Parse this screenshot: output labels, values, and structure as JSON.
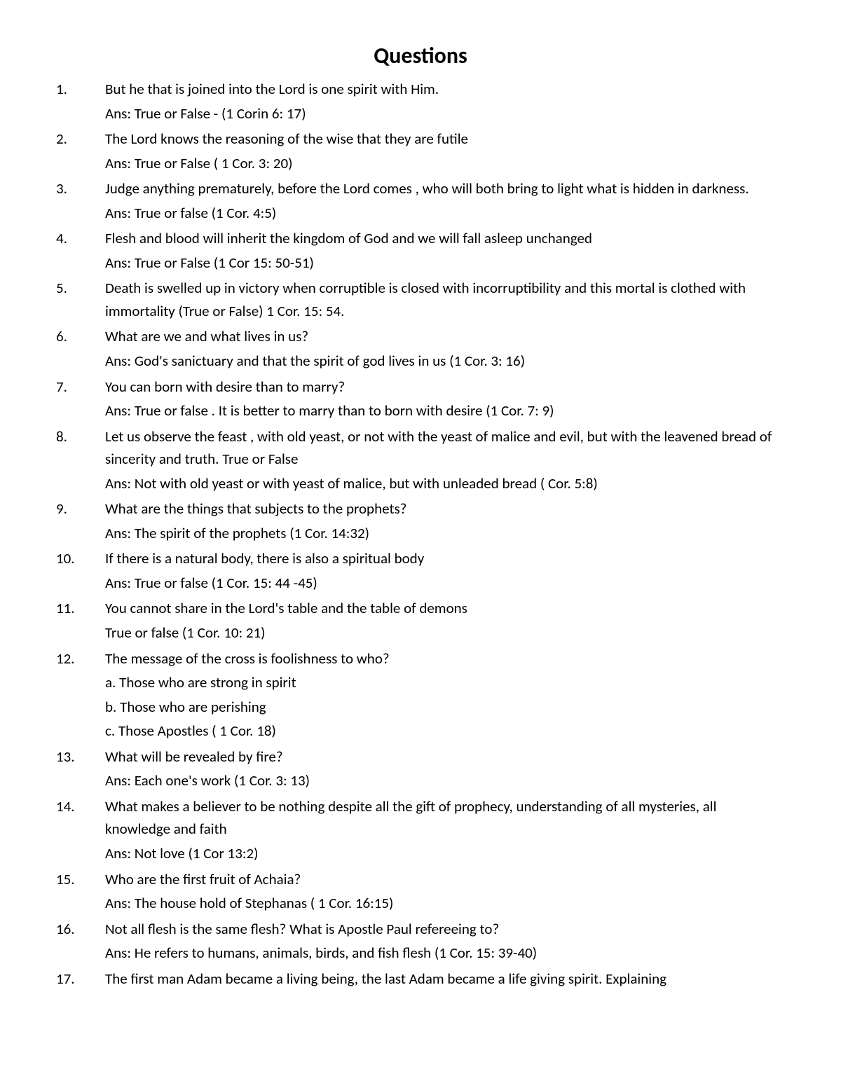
{
  "title": "Questions",
  "text_color": "#000000",
  "background_color": "#ffffff",
  "title_fontsize": 32,
  "body_fontsize": 21,
  "questions": [
    {
      "num": "1.",
      "lines": [
        "But he that is  joined into the Lord is one spirit with Him.",
        "Ans: True or False  - (1 Corin 6: 17)"
      ]
    },
    {
      "num": "2.",
      "lines": [
        "The Lord knows the reasoning of the wise that they are futile",
        "Ans: True or False ( 1 Cor. 3: 20)"
      ]
    },
    {
      "num": "3.",
      "lines": [
        "Judge anything prematurely, before the Lord comes , who will both bring to light what is hidden in darkness.",
        "Ans: True or false   (1 Cor. 4:5)"
      ]
    },
    {
      "num": "4.",
      "lines": [
        "Flesh and blood will inherit the kingdom  of God and we will fall asleep unchanged",
        "Ans: True or False  (1 Cor 15: 50-51)"
      ]
    },
    {
      "num": "5.",
      "lines": [
        "Death is swelled  up in victory when corruptible is closed with incorruptibility and this mortal is clothed with immortality  (True or False) 1 Cor. 15: 54."
      ]
    },
    {
      "num": "6.",
      "lines": [
        "What are we and  what  lives in us?",
        "Ans:  God's sanictuary and that the spirit of god lives in us (1 Cor. 3: 16)"
      ]
    },
    {
      "num": "7.",
      "lines": [
        "You can born with desire than to marry?",
        "Ans:  True or false  . It is better  to  marry than to born with desire (1 Cor. 7: 9)"
      ]
    },
    {
      "num": "8.",
      "lines": [
        "Let  us observe the feast , with old yeast, or not with the yeast of malice and evil, but with the leavened bread of sincerity  and truth. True or False",
        "Ans: Not with old yeast or with yeast of malice, but with unleaded bread ( Cor. 5:8)"
      ]
    },
    {
      "num": "9.",
      "lines": [
        "What are the things  that subjects to the prophets?",
        "Ans: The spirit  of the prophets (1 Cor. 14:32)"
      ]
    },
    {
      "num": "10.",
      "lines": [
        "If there is  a natural body, there is also a spiritual body",
        "Ans: True or false  (1 Cor. 15: 44 -45)"
      ]
    },
    {
      "num": "11.",
      "lines": [
        "You cannot share in the Lord's table  and the table of  demons",
        "True  or false  (1 Cor. 10: 21)"
      ]
    },
    {
      "num": "12.",
      "lines": [
        "The message  of the cross is foolishness  to who?",
        "a. Those who are strong in spirit",
        "b. Those who are perishing",
        "c.  Those  Apostles   ( 1 Cor. 18)"
      ]
    },
    {
      "num": "13.",
      "lines": [
        "What will be  revealed by fire?",
        "Ans: Each one's work (1 Cor. 3: 13)"
      ]
    },
    {
      "num": "14.",
      "lines": [
        "What makes a believer to be nothing despite all the gift of prophecy, understanding of all mysteries, all knowledge and faith",
        "Ans: Not   love (1 Cor 13:2)"
      ]
    },
    {
      "num": "15.",
      "lines": [
        "Who are the first  fruit of Achaia?",
        "Ans: The house hold of Stephanas ( 1 Cor. 16:15)"
      ]
    },
    {
      "num": "16.",
      "lines": [
        "Not  all flesh is the same flesh? What  is Apostle Paul refereeing to?",
        "Ans: He refers to humans, animals, birds, and fish flesh (1 Cor. 15: 39-40)"
      ]
    },
    {
      "num": "17.",
      "lines": [
        "The first man Adam became a living being, the last Adam became a life giving spirit. Explaining"
      ]
    }
  ]
}
